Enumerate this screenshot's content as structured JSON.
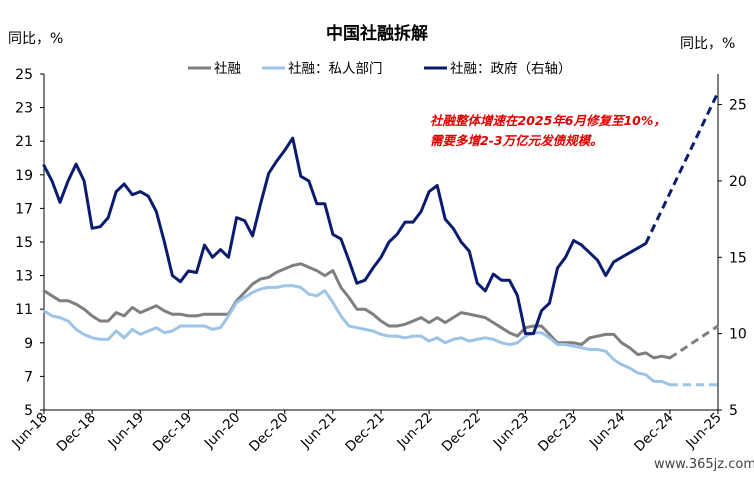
{
  "chart_data": {
    "type": "line",
    "title": "中国社融拆解",
    "left_unit": "同比，%",
    "right_unit": "同比，%",
    "ylim_left": [
      5,
      25
    ],
    "yticks_left": [
      5,
      7,
      9,
      11,
      13,
      15,
      17,
      19,
      21,
      23,
      25
    ],
    "ylim_right": [
      5,
      27
    ],
    "yticks_right": [
      5,
      10,
      15,
      20,
      25
    ],
    "x_start": "2018-06",
    "x_end": "2025-06",
    "x_tick_labels": [
      "Jun-18",
      "Dec-18",
      "Jun-19",
      "Dec-19",
      "Jun-20",
      "Dec-20",
      "Jun-21",
      "Dec-21",
      "Jun-22",
      "Dec-22",
      "Jun-23",
      "Dec-23",
      "Jun-24",
      "Dec-24",
      "Jun-25"
    ],
    "legend": [
      "社融",
      "社融：私人部门",
      "社融：政府（右轴）"
    ],
    "annotation": [
      "社融整体增速在2025年6月修复至10%，",
      "需要多增2-3万亿元发债规模。"
    ],
    "watermark": "www.365jz.com",
    "series": [
      {
        "name": "社融",
        "axis": "left",
        "color": "#7f7f7f",
        "values": [
          12.1,
          11.8,
          11.5,
          11.5,
          11.3,
          11.0,
          10.6,
          10.3,
          10.3,
          10.8,
          10.6,
          11.1,
          10.8,
          11.0,
          11.2,
          10.9,
          10.7,
          10.7,
          10.6,
          10.6,
          10.7,
          10.7,
          10.7,
          10.7,
          11.5,
          12.0,
          12.5,
          12.8,
          12.9,
          13.2,
          13.4,
          13.6,
          13.7,
          13.5,
          13.3,
          13.0,
          13.3,
          12.3,
          11.7,
          11.0,
          11.0,
          10.7,
          10.3,
          10.0,
          10.0,
          10.1,
          10.3,
          10.5,
          10.2,
          10.5,
          10.2,
          10.5,
          10.8,
          10.7,
          10.6,
          10.5,
          10.2,
          9.9,
          9.6,
          9.4,
          9.9,
          10.0,
          10.0,
          9.5,
          9.0,
          9.0,
          9.0,
          8.9,
          9.3,
          9.4,
          9.5,
          9.5,
          9.0,
          8.7,
          8.3,
          8.4,
          8.1,
          8.2,
          8.1
        ],
        "projection": {
          "values": [
            8.1,
            10.0
          ],
          "end": "2025-06"
        }
      },
      {
        "name": "社融：私人部门",
        "axis": "left",
        "color": "#9dc3e6",
        "values": [
          10.9,
          10.6,
          10.5,
          10.3,
          9.8,
          9.5,
          9.3,
          9.2,
          9.2,
          9.7,
          9.3,
          9.8,
          9.5,
          9.7,
          9.9,
          9.6,
          9.7,
          10.0,
          10.0,
          10.0,
          10.0,
          9.8,
          9.9,
          10.6,
          11.4,
          11.7,
          12.0,
          12.2,
          12.3,
          12.3,
          12.4,
          12.4,
          12.3,
          11.9,
          11.8,
          12.1,
          11.4,
          10.6,
          10.0,
          9.9,
          9.8,
          9.7,
          9.5,
          9.4,
          9.4,
          9.3,
          9.4,
          9.4,
          9.1,
          9.3,
          9.0,
          9.2,
          9.3,
          9.1,
          9.2,
          9.3,
          9.2,
          9.0,
          8.9,
          9.0,
          9.4,
          9.6,
          9.6,
          9.3,
          8.9,
          8.9,
          8.8,
          8.7,
          8.6,
          8.6,
          8.5,
          8.0,
          7.7,
          7.5,
          7.2,
          7.1,
          6.7,
          6.7,
          6.5
        ],
        "projection": {
          "values": [
            6.5,
            6.5
          ],
          "end": "2025-06"
        }
      },
      {
        "name": "社融：政府（右轴）",
        "axis": "right",
        "color": "#0b1c6e",
        "values": [
          21.0,
          20.0,
          18.6,
          20.0,
          21.1,
          20.0,
          16.9,
          17.0,
          17.6,
          19.3,
          19.8,
          19.1,
          19.3,
          19.0,
          18.0,
          16.0,
          13.8,
          13.4,
          14.1,
          14.0,
          15.8,
          15.0,
          15.5,
          15.0,
          17.6,
          17.4,
          16.4,
          18.5,
          20.5,
          21.3,
          22.0,
          22.8,
          20.3,
          20.0,
          18.5,
          18.5,
          16.5,
          16.2,
          14.8,
          13.3,
          13.5,
          14.3,
          15.0,
          16.0,
          16.5,
          17.3,
          17.3,
          18.0,
          19.3,
          19.7,
          17.5,
          16.9,
          16.0,
          15.4,
          13.3,
          12.8,
          13.9,
          13.5,
          13.5,
          12.5,
          10.0,
          10.0,
          11.5,
          12.0,
          14.3,
          15.0,
          16.1,
          15.8,
          15.3,
          14.8,
          13.8,
          14.7,
          15.0,
          15.3,
          15.6,
          15.9
        ],
        "projection": {
          "values": [
            15.9,
            25.8
          ],
          "end": "2025-06"
        }
      }
    ]
  }
}
